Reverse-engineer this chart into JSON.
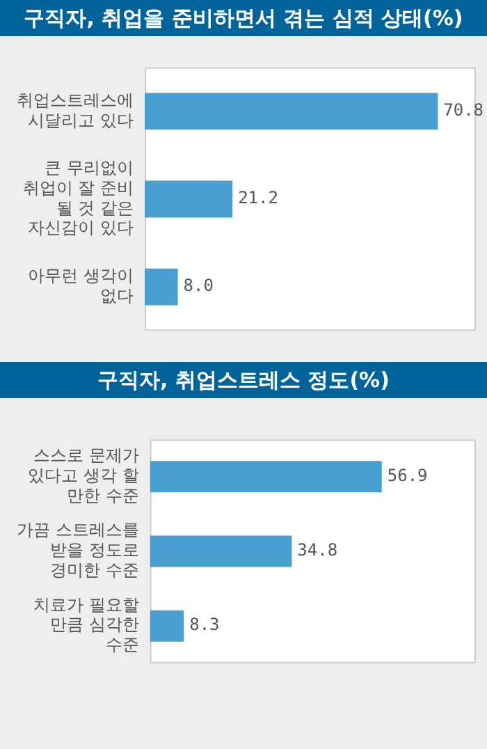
{
  "chart_data": [
    {
      "type": "bar",
      "orientation": "horizontal",
      "title": "구직자, 취업을 준비하면서 겪는 심적 상태(%)",
      "categories": [
        "취업스트레스에 시달리고 있다",
        "큰 무리없이 취업이 잘 준비 될 것 같은 자신감이 있다",
        "아무런 생각이 없다"
      ],
      "values": [
        70.8,
        21.2,
        8.0
      ],
      "value_labels": [
        "70.8",
        "21.2",
        "8.0"
      ],
      "color": "#499fd0",
      "tick_labels": "y"
    },
    {
      "type": "bar",
      "orientation": "horizontal",
      "title": "구직자, 취업스트레스 정도(%)",
      "categories": [
        "스스로 문제가 있다고 생각 할 만한 수준",
        "가끔 스트레스를 받을 정도로 경미한 수준",
        "치료가 필요할 만큼 심각한 수준"
      ],
      "values": [
        56.9,
        34.8,
        8.3
      ],
      "data_labels": true,
      "color": "#499fd0",
      "tick_labels": "y"
    }
  ]
}
